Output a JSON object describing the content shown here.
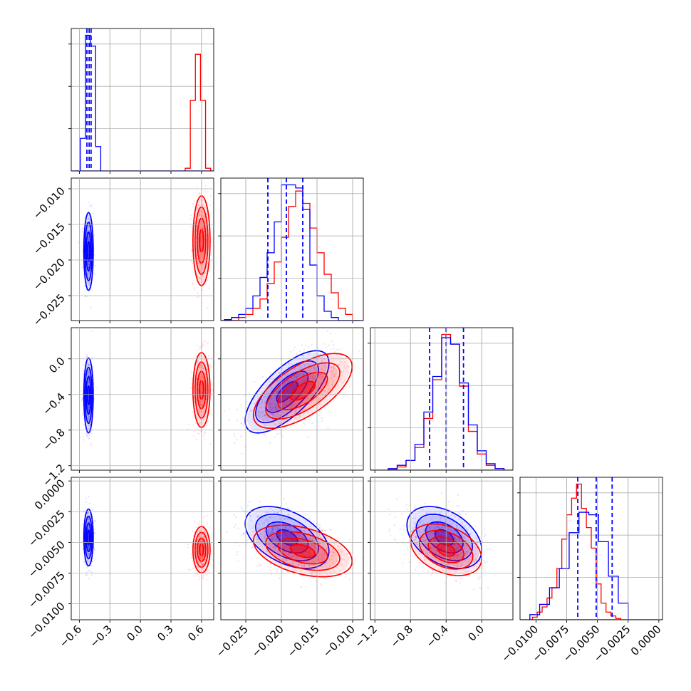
{
  "chart_data": {
    "type": "corner",
    "colors": {
      "series_a": "#0000ff",
      "series_b": "#ff0000"
    },
    "parameters": [
      {
        "id": "p0",
        "range": [
          -0.68,
          0.72
        ],
        "ticks": [
          -0.6,
          -0.3,
          0.0,
          0.3,
          0.6
        ],
        "tick_labels": [
          "−0.6",
          "−0.3",
          "0.0",
          "0.3",
          "0.6"
        ]
      },
      {
        "id": "p1",
        "range": [
          -0.0285,
          -0.0085
        ],
        "ticks": [
          -0.025,
          -0.02,
          -0.015,
          -0.01
        ],
        "tick_labels": [
          "−0.025",
          "−0.020",
          "−0.015",
          "−0.010"
        ]
      },
      {
        "id": "p2",
        "range": [
          -1.25,
          0.35
        ],
        "ticks": [
          -1.2,
          -0.8,
          -0.4,
          0.0
        ],
        "tick_labels": [
          "−1.2",
          "−0.8",
          "−0.4",
          "0.0"
        ]
      },
      {
        "id": "p3",
        "range": [
          -0.0113,
          0.0003
        ],
        "ticks": [
          -0.01,
          -0.0075,
          -0.005,
          -0.0025,
          0.0
        ],
        "tick_labels": [
          "−0.0100",
          "−0.0075",
          "−0.0050",
          "−0.0025",
          "0.0000"
        ]
      }
    ],
    "histograms": [
      {
        "param": "p0",
        "series_a": {
          "bins": [
            -0.64,
            -0.59,
            -0.54,
            -0.49,
            -0.44,
            -0.39
          ],
          "counts": [
            0,
            1.2,
            5.0,
            4.6,
            0.9,
            0
          ]
        },
        "series_b": {
          "bins": [
            0.44,
            0.49,
            0.54,
            0.59,
            0.64,
            0.69
          ],
          "counts": [
            0.1,
            2.6,
            4.3,
            2.6,
            0.1
          ]
        },
        "quantiles_a": [
          -0.526,
          -0.504,
          -0.485
        ]
      },
      {
        "param": "p1",
        "series_a": {
          "bins": [
            -0.028,
            -0.027,
            -0.026,
            -0.025,
            -0.024,
            -0.023,
            -0.022,
            -0.021,
            -0.02,
            -0.019,
            -0.018,
            -0.017,
            -0.016,
            -0.015,
            -0.014,
            -0.013,
            -0.012,
            -0.011,
            -0.01,
            -0.009
          ],
          "counts": [
            0.3,
            1,
            2,
            4,
            8,
            14,
            22,
            32,
            44,
            44,
            43,
            36,
            18,
            8,
            3,
            1,
            0,
            0,
            0
          ]
        },
        "series_b": {
          "bins": [
            -0.028,
            -0.027,
            -0.026,
            -0.025,
            -0.024,
            -0.023,
            -0.022,
            -0.021,
            -0.02,
            -0.019,
            -0.018,
            -0.017,
            -0.016,
            -0.015,
            -0.014,
            -0.013,
            -0.012,
            -0.011,
            -0.01,
            -0.009
          ],
          "counts": [
            0,
            0,
            1,
            2,
            4,
            7,
            12,
            19,
            27,
            37,
            42,
            38,
            30,
            22,
            15,
            9,
            4,
            2,
            0
          ]
        },
        "quantiles_a": [
          -0.0219,
          -0.0193,
          -0.017
        ]
      },
      {
        "param": "p2",
        "series_a": {
          "bins": [
            -1.05,
            -0.95,
            -0.85,
            -0.75,
            -0.65,
            -0.55,
            -0.45,
            -0.35,
            -0.25,
            -0.15,
            -0.05,
            0.05,
            0.15,
            0.25
          ],
          "counts": [
            0.5,
            1.5,
            3,
            8,
            18,
            29,
            41,
            39,
            27,
            14,
            6,
            2,
            0.5
          ]
        },
        "series_b": {
          "bins": [
            -1.05,
            -0.95,
            -0.85,
            -0.75,
            -0.65,
            -0.55,
            -0.45,
            -0.35,
            -0.25,
            -0.15,
            -0.05,
            0.05,
            0.15,
            0.25
          ],
          "counts": [
            0.3,
            1,
            3,
            7,
            16,
            28,
            42,
            39,
            26,
            12,
            5,
            1.5,
            0.5
          ]
        },
        "quantiles_a": [
          -0.585,
          -0.4,
          -0.205
        ]
      },
      {
        "param": "p3",
        "series_a": {
          "bins": [
            -0.0105,
            -0.0097,
            -0.0089,
            -0.0081,
            -0.0073,
            -0.0065,
            -0.0057,
            -0.0049,
            -0.0041,
            -0.0033,
            -0.0025
          ],
          "counts": [
            0.4,
            1.2,
            2.5,
            4.0,
            6.8,
            8.4,
            8.2,
            6.1,
            3.4,
            1.3
          ]
        },
        "series_b": {
          "bins": [
            -0.0103,
            -0.0099,
            -0.0095,
            -0.0091,
            -0.0087,
            -0.0083,
            -0.0079,
            -0.0075,
            -0.0071,
            -0.0067,
            -0.0063,
            -0.0059,
            -0.0055,
            -0.0051,
            -0.0047,
            -0.0043,
            -0.0039,
            -0.0035,
            -0.0031
          ],
          "counts": [
            0.2,
            0.6,
            1,
            1.7,
            2.5,
            4,
            6.3,
            8.2,
            9.5,
            10.6,
            8.7,
            7.2,
            5.6,
            2.8,
            1.3,
            0.6,
            0.3,
            0.1
          ]
        },
        "quantiles_a": [
          -0.0066,
          -0.0051,
          -0.0038
        ]
      }
    ],
    "pairs": [
      {
        "x": "p0",
        "y": "p1",
        "series_a": {
          "mean": [
            -0.51,
            -0.0188
          ],
          "sd": [
            0.022,
            0.0026
          ],
          "rho": 0.0
        },
        "series_b": {
          "mean": [
            0.6,
            -0.0173
          ],
          "sd": [
            0.04,
            0.003
          ],
          "rho": 0.0
        }
      },
      {
        "x": "p0",
        "y": "p2",
        "series_a": {
          "mean": [
            -0.51,
            -0.41
          ],
          "sd": [
            0.022,
            0.2
          ],
          "rho": 0.0
        },
        "series_b": {
          "mean": [
            0.6,
            -0.35
          ],
          "sd": [
            0.04,
            0.2
          ],
          "rho": 0.0
        }
      },
      {
        "x": "p0",
        "y": "p3",
        "series_a": {
          "mean": [
            -0.51,
            -0.0046
          ],
          "sd": [
            0.022,
            0.0011
          ],
          "rho": 0.0
        },
        "series_b": {
          "mean": [
            0.6,
            -0.0056
          ],
          "sd": [
            0.04,
            0.0009
          ],
          "rho": 0.0
        }
      },
      {
        "x": "p1",
        "y": "p2",
        "series_a": {
          "mean": [
            -0.0192,
            -0.37
          ],
          "sd": [
            0.0028,
            0.22
          ],
          "rho": 0.7
        },
        "series_b": {
          "mean": [
            -0.017,
            -0.36
          ],
          "sd": [
            0.0033,
            0.2
          ],
          "rho": 0.65
        }
      },
      {
        "x": "p1",
        "y": "p3",
        "series_a": {
          "mean": [
            -0.0192,
            -0.0046
          ],
          "sd": [
            0.0028,
            0.0012
          ],
          "rho": -0.45
        },
        "series_b": {
          "mean": [
            -0.017,
            -0.0057
          ],
          "sd": [
            0.0033,
            0.001
          ],
          "rho": -0.4
        }
      },
      {
        "x": "p2",
        "y": "p3",
        "series_a": {
          "mean": [
            -0.42,
            -0.0046
          ],
          "sd": [
            0.2,
            0.0012
          ],
          "rho": -0.4
        },
        "series_b": {
          "mean": [
            -0.4,
            -0.0056
          ],
          "sd": [
            0.19,
            0.001
          ],
          "rho": -0.35
        }
      }
    ],
    "contour_levels_sigma": [
      0.5,
      1.0,
      1.5,
      2.0
    ],
    "grid": true,
    "title": "",
    "xlabel": "",
    "ylabel": ""
  }
}
